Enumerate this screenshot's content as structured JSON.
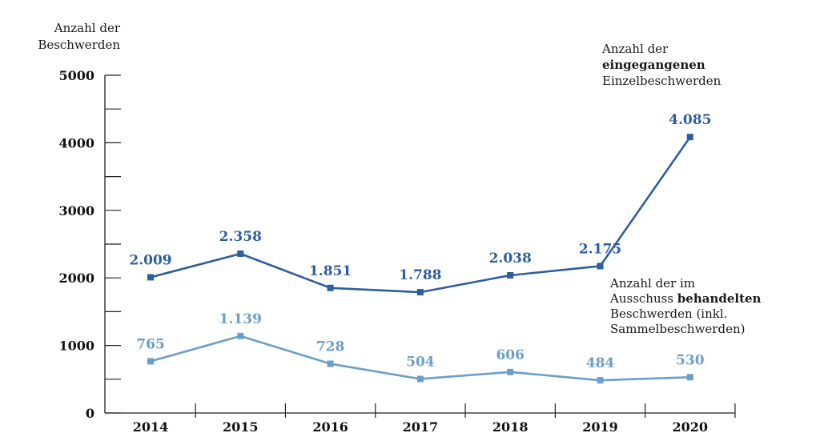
{
  "chart_data": {
    "type": "line",
    "title": "",
    "ylabel_lines": [
      "Anzahl der",
      "Beschwerden"
    ],
    "xlabel": "",
    "categories": [
      "2014",
      "2015",
      "2016",
      "2017",
      "2018",
      "2019",
      "2020"
    ],
    "ylim": [
      0,
      5000
    ],
    "yticks": [
      0,
      1000,
      2000,
      3000,
      4000,
      5000
    ],
    "ytick_labels": [
      "0",
      "1000",
      "2000",
      "3000",
      "4000",
      "5000"
    ],
    "series": [
      {
        "name": "Anzahl der eingegangenen Einzelbeschwerden",
        "color": "#2e5e9e",
        "values": [
          2009,
          2358,
          1851,
          1788,
          2038,
          2175,
          4085
        ],
        "labels": [
          "2.009",
          "2.358",
          "1.851",
          "1.788",
          "2.038",
          "2.175",
          "4.085"
        ],
        "annotation": [
          "Anzahl der",
          "eingegangenen",
          "Einzelbeschwerden"
        ]
      },
      {
        "name": "Anzahl der im Ausschuss behandelten Beschwerden (inkl. Sammelbeschwerden)",
        "color": "#6a9fc9",
        "values": [
          765,
          1139,
          728,
          504,
          606,
          484,
          530
        ],
        "labels": [
          "765",
          "1.139",
          "728",
          "504",
          "606",
          "484",
          "530"
        ],
        "annotation": [
          "Anzahl der im",
          "Ausschuss",
          "behandelten",
          "Beschwerden (inkl.",
          "Sammelbeschwerden)"
        ]
      }
    ],
    "grid": false
  }
}
